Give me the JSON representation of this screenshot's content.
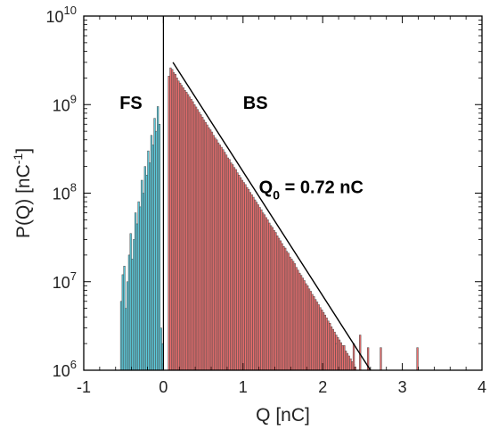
{
  "chart_data": {
    "type": "bar",
    "xlabel": "Q [nC]",
    "ylabel": {
      "base": "P(Q) [nC",
      "sup": "-1",
      "close": "]"
    },
    "xlim": [
      -1,
      4
    ],
    "ylim": [
      1000000,
      10000000000
    ],
    "yscale": "log",
    "grid": false,
    "x_ticks": [
      {
        "value": -1,
        "label": "-1"
      },
      {
        "value": 0,
        "label": "0"
      },
      {
        "value": 1,
        "label": "1"
      },
      {
        "value": 2,
        "label": "2"
      },
      {
        "value": 3,
        "label": "3"
      },
      {
        "value": 4,
        "label": "4"
      }
    ],
    "y_ticks": [
      {
        "value": 1000000,
        "base": "10",
        "exp": "6"
      },
      {
        "value": 10000000,
        "base": "10",
        "exp": "7"
      },
      {
        "value": 100000000,
        "base": "10",
        "exp": "8"
      },
      {
        "value": 1000000000,
        "base": "10",
        "exp": "9"
      },
      {
        "value": 10000000000,
        "base": "10",
        "exp": "10"
      }
    ],
    "bin_width": 0.02,
    "series": [
      {
        "name": "FS",
        "color": "#5bc8d9",
        "x_start": -0.54,
        "values": [
          6000000,
          12000000,
          15000000,
          5000000,
          10000000,
          20000000,
          35000000,
          18000000,
          30000000,
          60000000,
          45000000,
          80000000,
          70000000,
          140000000,
          100000000,
          200000000,
          160000000,
          300000000,
          220000000,
          450000000,
          350000000,
          700000000,
          500000000,
          950000000,
          600000000,
          3000000,
          2000000
        ]
      },
      {
        "name": "BS",
        "color": "#e96d6d",
        "x_start": 0.06,
        "values": [
          2100000000,
          2600000000,
          2500000000,
          2300000000,
          2200000000,
          2000000000,
          1850000000,
          1750000000,
          1650000000,
          1550000000,
          1450000000,
          1380000000,
          1300000000,
          1220000000,
          1150000000,
          1080000000,
          1000000000,
          940000000,
          880000000,
          820000000,
          770000000,
          720000000,
          670000000,
          630000000,
          590000000,
          550000000,
          520000000,
          490000000,
          450000000,
          420000000,
          400000000,
          370000000,
          350000000,
          330000000,
          310000000,
          290000000,
          270000000,
          250000000,
          240000000,
          220000000,
          210000000,
          195000000,
          185000000,
          170000000,
          160000000,
          150000000,
          140000000,
          132000000,
          125000000,
          116000000,
          110000000,
          102000000,
          96000000,
          90000000,
          84000000,
          79000000,
          74000000,
          69000000,
          65000000,
          60000000,
          57000000,
          53000000,
          50000000,
          46000000,
          43000000,
          41000000,
          38000000,
          36000000,
          33000000,
          31000000,
          29000000,
          27000000,
          25000000,
          24000000,
          22000000,
          21000000,
          19000000,
          18000000,
          17000000,
          16000000,
          14500000,
          13500000,
          12500000,
          11800000,
          11000000,
          10300000,
          9500000,
          9000000,
          8300000,
          7800000,
          7200000,
          6800000,
          6300000,
          5900000,
          5500000,
          5100000,
          4800000,
          4500000,
          4200000,
          3900000,
          3600000,
          3400000,
          3100000,
          2900000,
          2700000,
          2500000,
          2350000,
          2200000,
          2050000,
          1900000,
          1800000,
          1650000,
          1550000,
          1450000,
          1350000,
          1250000,
          1170000,
          1090000
        ],
        "outliers": [
          {
            "x": 2.16,
            "value": 2000000
          },
          {
            "x": 2.26,
            "value": 1900000
          },
          {
            "x": 2.38,
            "value": 2000000
          },
          {
            "x": 2.46,
            "value": 2500000
          },
          {
            "x": 2.56,
            "value": 1800000
          },
          {
            "x": 2.72,
            "value": 1800000
          },
          {
            "x": 3.18,
            "value": 1800000
          }
        ]
      }
    ],
    "fit_line": {
      "x": [
        0.12,
        2.6
      ],
      "y": [
        3000000000,
        1000000
      ]
    },
    "annotations": [
      {
        "key": "fs",
        "text": "FS",
        "x": -0.55,
        "y": 900000000
      },
      {
        "key": "bs",
        "text": "BS",
        "x": 1.0,
        "y": 900000000
      },
      {
        "key": "q0",
        "base": "Q",
        "sub": "0",
        "rest": " = 0.72 nC",
        "x": 1.2,
        "y": 100000000
      }
    ]
  }
}
